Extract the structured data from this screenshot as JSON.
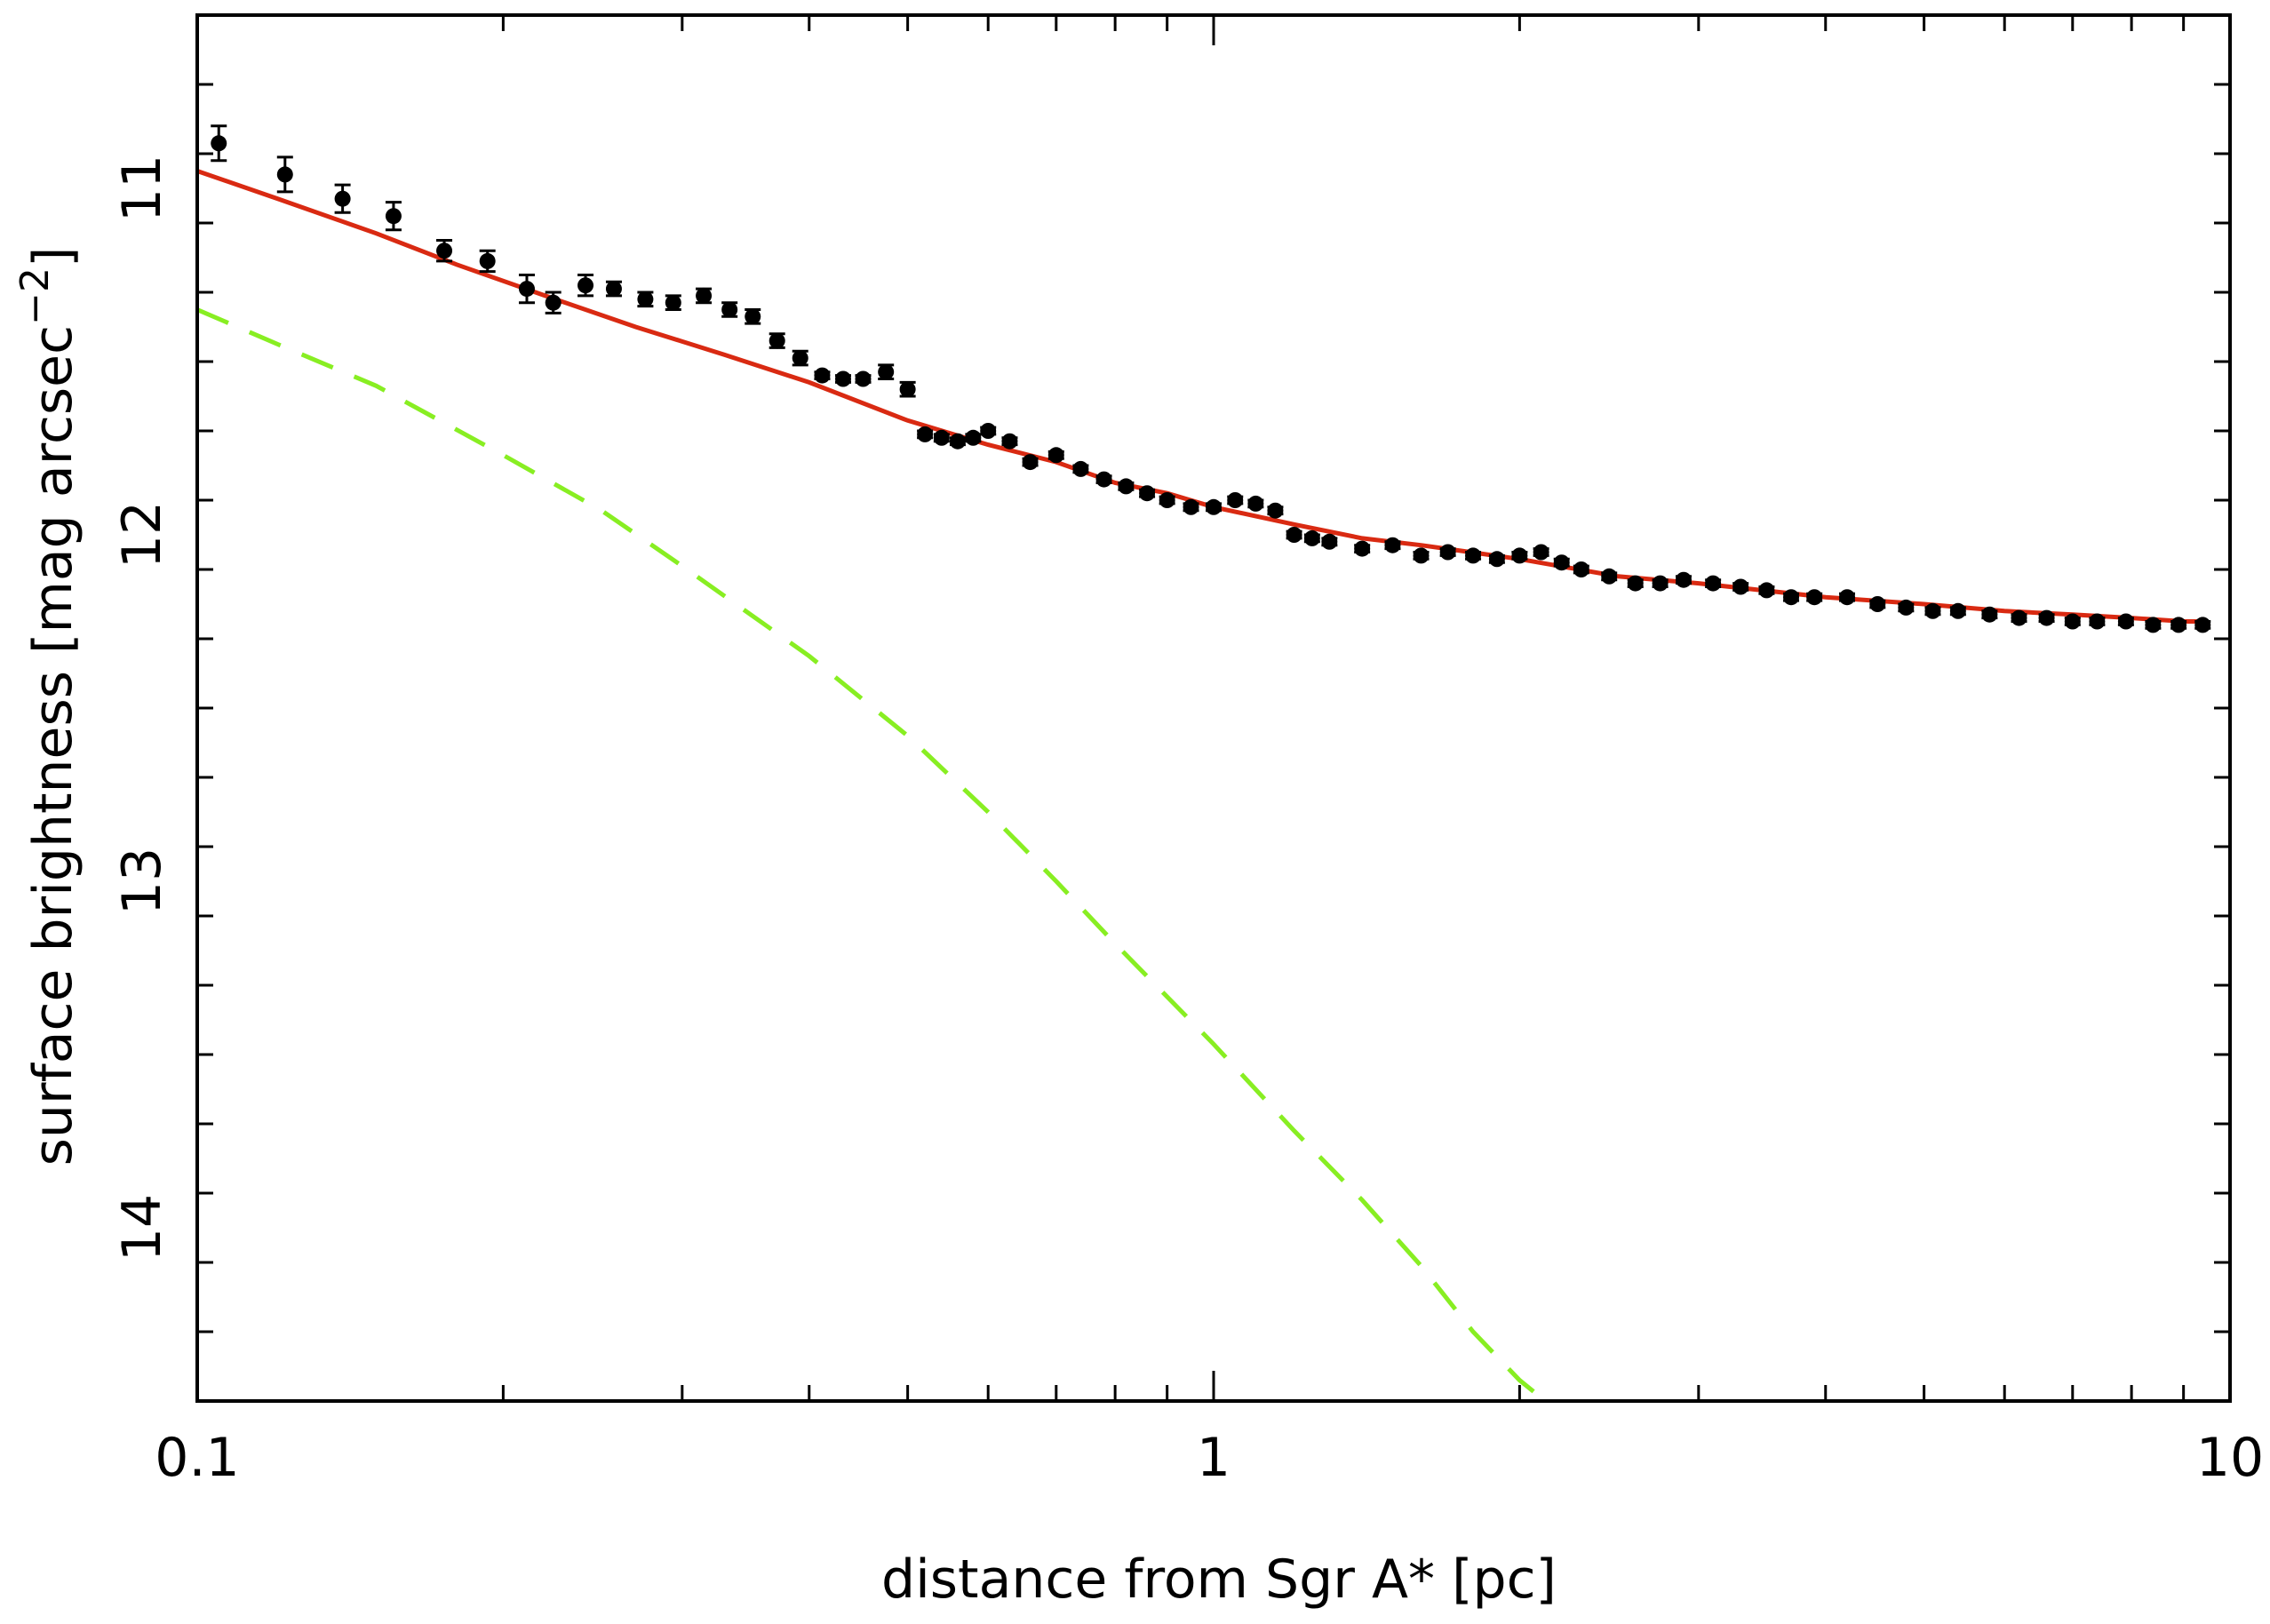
{
  "chart_data": {
    "type": "scatter",
    "xlabel": "distance from Sgr A* [pc]",
    "ylabel_main": "surface brightness [mag arcsec",
    "ylabel_sup": "−2",
    "ylabel_close": "]",
    "x_scale": "log",
    "xlim": [
      0.1,
      10
    ],
    "ylim": [
      14.5,
      10.5
    ],
    "y_inverted": true,
    "grid": false,
    "x_ticks": [
      {
        "value": 0.1,
        "label": "0.1"
      },
      {
        "value": 1,
        "label": "1"
      },
      {
        "value": 10,
        "label": "10"
      }
    ],
    "y_ticks": [
      {
        "value": 11,
        "label": "11"
      },
      {
        "value": 12,
        "label": "12"
      },
      {
        "value": 13,
        "label": "13"
      },
      {
        "value": 14,
        "label": "14"
      }
    ],
    "colors": {
      "data": "#000000",
      "fit": "#d92a12",
      "component": "#88ee22"
    },
    "series": [
      {
        "kind": "points",
        "x": [
          0.105,
          0.122,
          0.139,
          0.156,
          0.175,
          0.193,
          0.211,
          0.224,
          0.241,
          0.257,
          0.276,
          0.294,
          0.315,
          0.334,
          0.352,
          0.372,
          0.392,
          0.412,
          0.432,
          0.452,
          0.476,
          0.5,
          0.52,
          0.54,
          0.56,
          0.58,
          0.6,
          0.63,
          0.66,
          0.7,
          0.74,
          0.78,
          0.82,
          0.86,
          0.9,
          0.95,
          1.0,
          1.05,
          1.1,
          1.15,
          1.2,
          1.25,
          1.3,
          1.4,
          1.5,
          1.6,
          1.7,
          1.8,
          1.9,
          2.0,
          2.1,
          2.2,
          2.3,
          2.45,
          2.6,
          2.75,
          2.9,
          3.1,
          3.3,
          3.5,
          3.7,
          3.9,
          4.2,
          4.5,
          4.8,
          5.1,
          5.4,
          5.8,
          6.2,
          6.6,
          7.0,
          7.4,
          7.9,
          8.4,
          8.9,
          9.4
        ],
        "y": [
          10.87,
          10.96,
          11.03,
          11.08,
          11.18,
          11.21,
          11.29,
          11.33,
          11.28,
          11.29,
          11.32,
          11.33,
          11.31,
          11.35,
          11.37,
          11.44,
          11.49,
          11.54,
          11.55,
          11.55,
          11.53,
          11.58,
          11.71,
          11.72,
          11.73,
          11.72,
          11.7,
          11.73,
          11.79,
          11.77,
          11.81,
          11.84,
          11.86,
          11.88,
          11.9,
          11.92,
          11.92,
          11.9,
          11.91,
          11.93,
          12.0,
          12.01,
          12.02,
          12.04,
          12.03,
          12.06,
          12.05,
          12.06,
          12.07,
          12.06,
          12.05,
          12.08,
          12.1,
          12.12,
          12.14,
          12.14,
          12.13,
          12.14,
          12.15,
          12.16,
          12.18,
          12.18,
          12.18,
          12.2,
          12.21,
          12.22,
          12.22,
          12.23,
          12.24,
          12.24,
          12.25,
          12.25,
          12.25,
          12.26,
          12.26,
          12.26
        ],
        "err": [
          0.05,
          0.05,
          0.04,
          0.04,
          0.03,
          0.03,
          0.04,
          0.03,
          0.03,
          0.02,
          0.02,
          0.02,
          0.02,
          0.02,
          0.02,
          0.02,
          0.02,
          0.01,
          0.01,
          0.01,
          0.02,
          0.02,
          0.01,
          0.01,
          0.01,
          0.01,
          0.01,
          0.01,
          0.01,
          0.01,
          0.01,
          0.01,
          0.01,
          0.01,
          0.01,
          0.01,
          0.01,
          0.01,
          0.01,
          0.01,
          0.01,
          0.01,
          0.01,
          0.01,
          0.01,
          0.01,
          0.01,
          0.01,
          0.01,
          0.01,
          0.01,
          0.01,
          0.01,
          0.01,
          0.01,
          0.01,
          0.01,
          0.01,
          0.01,
          0.01,
          0.01,
          0.01,
          0.01,
          0.01,
          0.01,
          0.01,
          0.01,
          0.01,
          0.01,
          0.01,
          0.01,
          0.01,
          0.01,
          0.01,
          0.01,
          0.01
        ]
      },
      {
        "kind": "line",
        "style": "solid",
        "x": [
          0.1,
          0.12,
          0.15,
          0.18,
          0.22,
          0.27,
          0.33,
          0.4,
          0.5,
          0.6,
          0.7,
          0.8,
          0.9,
          1.0,
          1.2,
          1.4,
          1.6,
          2.0,
          2.5,
          3.0,
          4.0,
          5.0,
          6.0,
          7.0,
          8.0,
          9.0,
          9.5
        ],
        "y": [
          10.95,
          11.03,
          11.13,
          11.22,
          11.31,
          11.4,
          11.48,
          11.56,
          11.67,
          11.74,
          11.79,
          11.85,
          11.88,
          11.92,
          11.97,
          12.01,
          12.03,
          12.07,
          12.12,
          12.14,
          12.18,
          12.2,
          12.22,
          12.23,
          12.24,
          12.25,
          12.25
        ]
      },
      {
        "kind": "line",
        "style": "dashed",
        "x": [
          0.1,
          0.12,
          0.15,
          0.2,
          0.25,
          0.3,
          0.4,
          0.5,
          0.6,
          0.7,
          0.8,
          1.0,
          1.2,
          1.4,
          1.6,
          1.8,
          2.0,
          2.12
        ],
        "y": [
          11.35,
          11.45,
          11.57,
          11.77,
          11.93,
          12.09,
          12.35,
          12.58,
          12.8,
          13.0,
          13.18,
          13.47,
          13.72,
          13.92,
          14.11,
          14.3,
          14.44,
          14.5
        ]
      }
    ]
  }
}
